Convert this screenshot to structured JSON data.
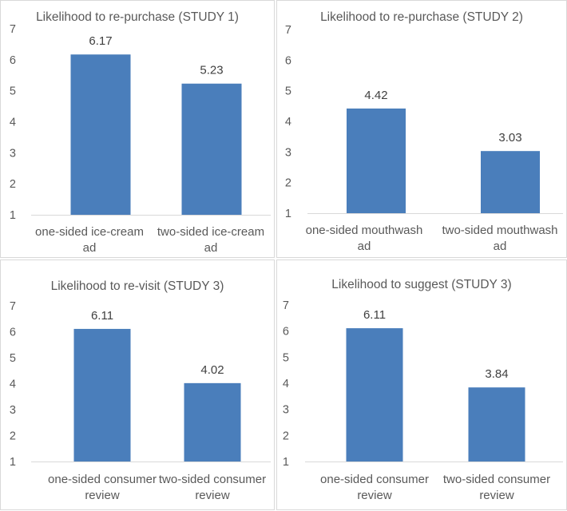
{
  "style": {
    "bar_color": "#4a7ebb",
    "axis_color": "#d9d9d9",
    "text_color": "#595959",
    "label_color": "#404040"
  },
  "chart_data": [
    {
      "type": "bar",
      "title": "Likelihood to re-purchase (STUDY 1)",
      "categories": [
        "one-sided ice-cream ad",
        "two-sided ice-cream ad"
      ],
      "values": [
        6.17,
        5.23
      ],
      "ylim": [
        1,
        7
      ],
      "yticks": [
        "1",
        "2",
        "3",
        "4",
        "5",
        "6",
        "7"
      ],
      "grid": false,
      "legend": "none"
    },
    {
      "type": "bar",
      "title": "Likelihood to re-purchase (STUDY 2)",
      "categories": [
        "one-sided mouthwash ad",
        "two-sided mouthwash ad"
      ],
      "values": [
        4.42,
        3.03
      ],
      "ylim": [
        1,
        7
      ],
      "yticks": [
        "1",
        "2",
        "3",
        "4",
        "5",
        "6",
        "7"
      ],
      "grid": false,
      "legend": "none"
    },
    {
      "type": "bar",
      "title": "Likelihood to re-visit (STUDY 3)",
      "categories": [
        "one-sided consumer review",
        "two-sided consumer review"
      ],
      "values": [
        6.11,
        4.02
      ],
      "ylim": [
        1,
        7
      ],
      "yticks": [
        "1",
        "2",
        "3",
        "4",
        "5",
        "6",
        "7"
      ],
      "grid": false,
      "legend": "none"
    },
    {
      "type": "bar",
      "title": "Likelihood to suggest (STUDY 3)",
      "categories": [
        "one-sided consumer review",
        "two-sided consumer review"
      ],
      "values": [
        6.11,
        3.84
      ],
      "ylim": [
        1,
        7
      ],
      "yticks": [
        "1",
        "2",
        "3",
        "4",
        "5",
        "6",
        "7"
      ],
      "grid": false,
      "legend": "none"
    }
  ]
}
